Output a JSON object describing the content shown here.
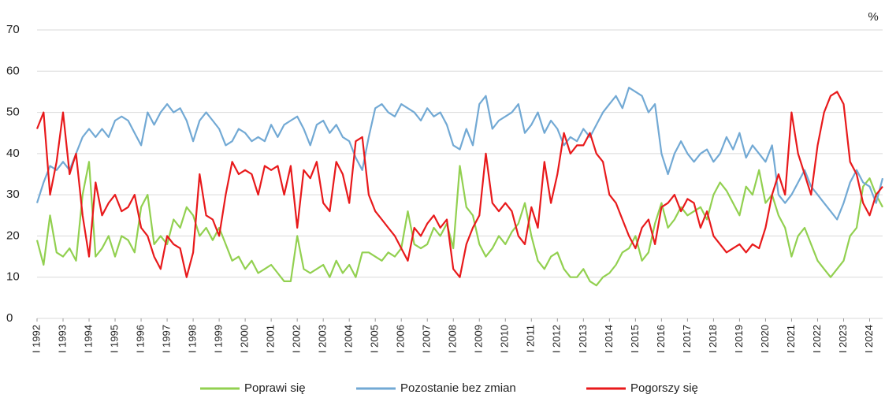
{
  "chart_data": {
    "type": "line",
    "unit_label": "%",
    "x": [
      1992,
      1992.25,
      1992.5,
      1992.75,
      1993,
      1993.25,
      1993.5,
      1993.75,
      1994,
      1994.25,
      1994.5,
      1994.75,
      1995,
      1995.25,
      1995.5,
      1995.75,
      1996,
      1996.25,
      1996.5,
      1996.75,
      1997,
      1997.25,
      1997.5,
      1997.75,
      1998,
      1998.25,
      1998.5,
      1998.75,
      1999,
      1999.25,
      1999.5,
      1999.75,
      2000,
      2000.25,
      2000.5,
      2000.75,
      2001,
      2001.25,
      2001.5,
      2001.75,
      2002,
      2002.25,
      2002.5,
      2002.75,
      2003,
      2003.25,
      2003.5,
      2003.75,
      2004,
      2004.25,
      2004.5,
      2004.75,
      2005,
      2005.25,
      2005.5,
      2005.75,
      2006,
      2006.25,
      2006.5,
      2006.75,
      2007,
      2007.25,
      2007.5,
      2007.75,
      2008,
      2008.25,
      2008.5,
      2008.75,
      2009,
      2009.25,
      2009.5,
      2009.75,
      2010,
      2010.25,
      2010.5,
      2010.75,
      2011,
      2011.25,
      2011.5,
      2011.75,
      2012,
      2012.25,
      2012.5,
      2012.75,
      2013,
      2013.25,
      2013.5,
      2013.75,
      2014,
      2014.25,
      2014.5,
      2014.75,
      2015,
      2015.25,
      2015.5,
      2015.75,
      2016,
      2016.25,
      2016.5,
      2016.75,
      2017,
      2017.25,
      2017.5,
      2017.75,
      2018,
      2018.25,
      2018.5,
      2018.75,
      2019,
      2019.25,
      2019.5,
      2019.75,
      2020,
      2020.25,
      2020.5,
      2020.75,
      2021,
      2021.25,
      2021.5,
      2021.75,
      2022,
      2022.25,
      2022.5,
      2022.75,
      2023,
      2023.25,
      2023.5,
      2023.75,
      2024,
      2024.25,
      2024.5
    ],
    "series": [
      {
        "name": "Poprawi się",
        "color": "#92d050",
        "values": [
          19,
          13,
          25,
          16,
          15,
          17,
          14,
          30,
          38,
          15,
          17,
          20,
          15,
          20,
          19,
          16,
          27,
          30,
          18,
          20,
          18,
          24,
          22,
          27,
          25,
          20,
          22,
          19,
          22,
          18,
          14,
          15,
          12,
          14,
          11,
          12,
          13,
          11,
          9,
          9,
          20,
          12,
          11,
          12,
          13,
          10,
          14,
          11,
          13,
          10,
          16,
          16,
          15,
          14,
          16,
          15,
          17,
          26,
          18,
          17,
          18,
          22,
          20,
          23,
          17,
          37,
          27,
          25,
          18,
          15,
          17,
          20,
          18,
          21,
          23,
          28,
          20,
          14,
          12,
          15,
          16,
          12,
          10,
          10,
          12,
          9,
          8,
          10,
          11,
          13,
          16,
          17,
          20,
          14,
          16,
          23,
          28,
          22,
          24,
          27,
          25,
          26,
          27,
          24,
          30,
          33,
          31,
          28,
          25,
          32,
          30,
          36,
          28,
          30,
          25,
          22,
          15,
          20,
          22,
          18,
          14,
          12,
          10,
          12,
          14,
          20,
          22,
          32,
          34,
          30,
          27
        ]
      },
      {
        "name": "Pozostanie bez zmian",
        "color": "#72a9d4",
        "values": [
          28,
          33,
          37,
          36,
          38,
          36,
          40,
          44,
          46,
          44,
          46,
          44,
          48,
          49,
          48,
          45,
          42,
          50,
          47,
          50,
          52,
          50,
          51,
          48,
          43,
          48,
          50,
          48,
          46,
          42,
          43,
          46,
          45,
          43,
          44,
          43,
          47,
          44,
          47,
          48,
          49,
          46,
          42,
          47,
          48,
          45,
          47,
          44,
          43,
          39,
          36,
          44,
          51,
          52,
          50,
          49,
          52,
          51,
          50,
          48,
          51,
          49,
          50,
          47,
          42,
          41,
          46,
          42,
          52,
          54,
          46,
          48,
          49,
          50,
          52,
          45,
          47,
          50,
          45,
          48,
          46,
          42,
          44,
          43,
          46,
          44,
          47,
          50,
          52,
          54,
          51,
          56,
          55,
          54,
          50,
          52,
          40,
          35,
          40,
          43,
          40,
          38,
          40,
          41,
          38,
          40,
          44,
          41,
          45,
          39,
          42,
          40,
          38,
          42,
          30,
          28,
          30,
          33,
          36,
          32,
          30,
          28,
          26,
          24,
          28,
          33,
          36,
          33,
          32,
          28,
          34
        ]
      },
      {
        "name": "Pogorszy się",
        "color": "#e8191b",
        "values": [
          46,
          50,
          30,
          38,
          50,
          35,
          40,
          25,
          15,
          33,
          25,
          28,
          30,
          26,
          27,
          30,
          22,
          20,
          15,
          12,
          20,
          18,
          17,
          10,
          16,
          35,
          25,
          24,
          20,
          30,
          38,
          35,
          36,
          35,
          30,
          37,
          36,
          37,
          30,
          37,
          22,
          36,
          34,
          38,
          28,
          26,
          38,
          35,
          28,
          43,
          44,
          30,
          26,
          24,
          22,
          20,
          17,
          14,
          22,
          20,
          23,
          25,
          22,
          24,
          12,
          10,
          18,
          22,
          25,
          40,
          28,
          26,
          28,
          26,
          20,
          18,
          27,
          22,
          38,
          28,
          35,
          45,
          40,
          42,
          42,
          45,
          40,
          38,
          30,
          28,
          24,
          20,
          17,
          22,
          24,
          18,
          27,
          28,
          30,
          26,
          29,
          28,
          22,
          26,
          20,
          18,
          16,
          17,
          18,
          16,
          18,
          17,
          22,
          30,
          35,
          30,
          50,
          40,
          35,
          30,
          42,
          50,
          54,
          55,
          52,
          38,
          35,
          28,
          25,
          30,
          32
        ]
      }
    ],
    "xlim": [
      1992,
      2024.5
    ],
    "xticks": [
      {
        "value": 1992,
        "label": "I 1992"
      },
      {
        "value": 1993,
        "label": "I 1993"
      },
      {
        "value": 1994,
        "label": "I 1994"
      },
      {
        "value": 1995,
        "label": "I 1995"
      },
      {
        "value": 1996,
        "label": "I 1996"
      },
      {
        "value": 1997,
        "label": "I 1997"
      },
      {
        "value": 1998,
        "label": "I 1998"
      },
      {
        "value": 1999,
        "label": "I 1999"
      },
      {
        "value": 2000,
        "label": "I 2000"
      },
      {
        "value": 2001,
        "label": "I 2001"
      },
      {
        "value": 2002,
        "label": "I 2002"
      },
      {
        "value": 2003,
        "label": "I 2003"
      },
      {
        "value": 2004,
        "label": "I 2004"
      },
      {
        "value": 2005,
        "label": "I 2005"
      },
      {
        "value": 2006,
        "label": "I 2006"
      },
      {
        "value": 2007,
        "label": "I 2007"
      },
      {
        "value": 2008,
        "label": "I 2008"
      },
      {
        "value": 2009,
        "label": "I 2009"
      },
      {
        "value": 2010,
        "label": "I 2010"
      },
      {
        "value": 2011,
        "label": "I 2011"
      },
      {
        "value": 2012,
        "label": "I 2012"
      },
      {
        "value": 2013,
        "label": "I 2013"
      },
      {
        "value": 2014,
        "label": "I 2014"
      },
      {
        "value": 2015,
        "label": "I 2015"
      },
      {
        "value": 2016,
        "label": "I 2016"
      },
      {
        "value": 2017,
        "label": "I 2017"
      },
      {
        "value": 2018,
        "label": "I 2018"
      },
      {
        "value": 2019,
        "label": "I 2019"
      },
      {
        "value": 2020,
        "label": "I 2020"
      },
      {
        "value": 2021,
        "label": "I 2021"
      },
      {
        "value": 2022,
        "label": "I 2022"
      },
      {
        "value": 2023,
        "label": "I 2023"
      },
      {
        "value": 2024,
        "label": "I 2024"
      }
    ],
    "ylim": [
      0,
      70
    ],
    "yticks": [
      0,
      10,
      20,
      30,
      40,
      50,
      60,
      70
    ],
    "grid": true,
    "legend": "bottom"
  }
}
